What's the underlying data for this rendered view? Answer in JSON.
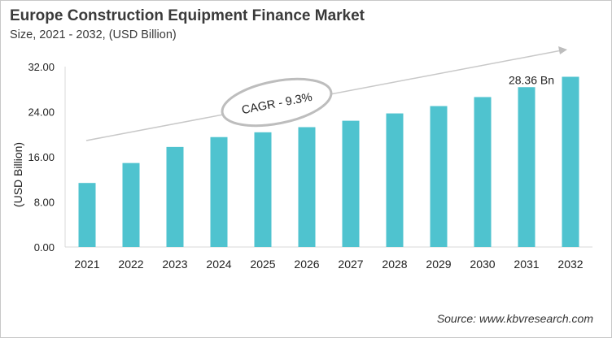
{
  "header": {
    "title": "Europe Construction Equipment Finance Market",
    "subtitle": "Size, 2021 - 2032, (USD Billion)"
  },
  "footer": {
    "source": "Source: www.kbvresearch.com"
  },
  "chart_data": {
    "type": "bar",
    "title": "Europe Construction Equipment Finance Market",
    "subtitle": "Size, 2021 - 2032, (USD Billion)",
    "xlabel": "",
    "ylabel": "(USD Billion)",
    "ylim": [
      0,
      32
    ],
    "yticks": [
      "0.00",
      "8.00",
      "16.00",
      "24.00",
      "32.00"
    ],
    "categories": [
      "2021",
      "2022",
      "2023",
      "2024",
      "2025",
      "2026",
      "2027",
      "2028",
      "2029",
      "2030",
      "2031",
      "2032"
    ],
    "values": [
      11.36,
      14.9,
      17.75,
      19.5,
      20.35,
      21.26,
      22.4,
      23.7,
      25.0,
      26.6,
      28.36,
      30.2
    ],
    "bar_color": "#4fc3cf",
    "grid": false,
    "annotations": {
      "cagr": "CAGR - 9.3%",
      "data_label": "28.36 Bn",
      "data_label_category": "2031"
    }
  }
}
